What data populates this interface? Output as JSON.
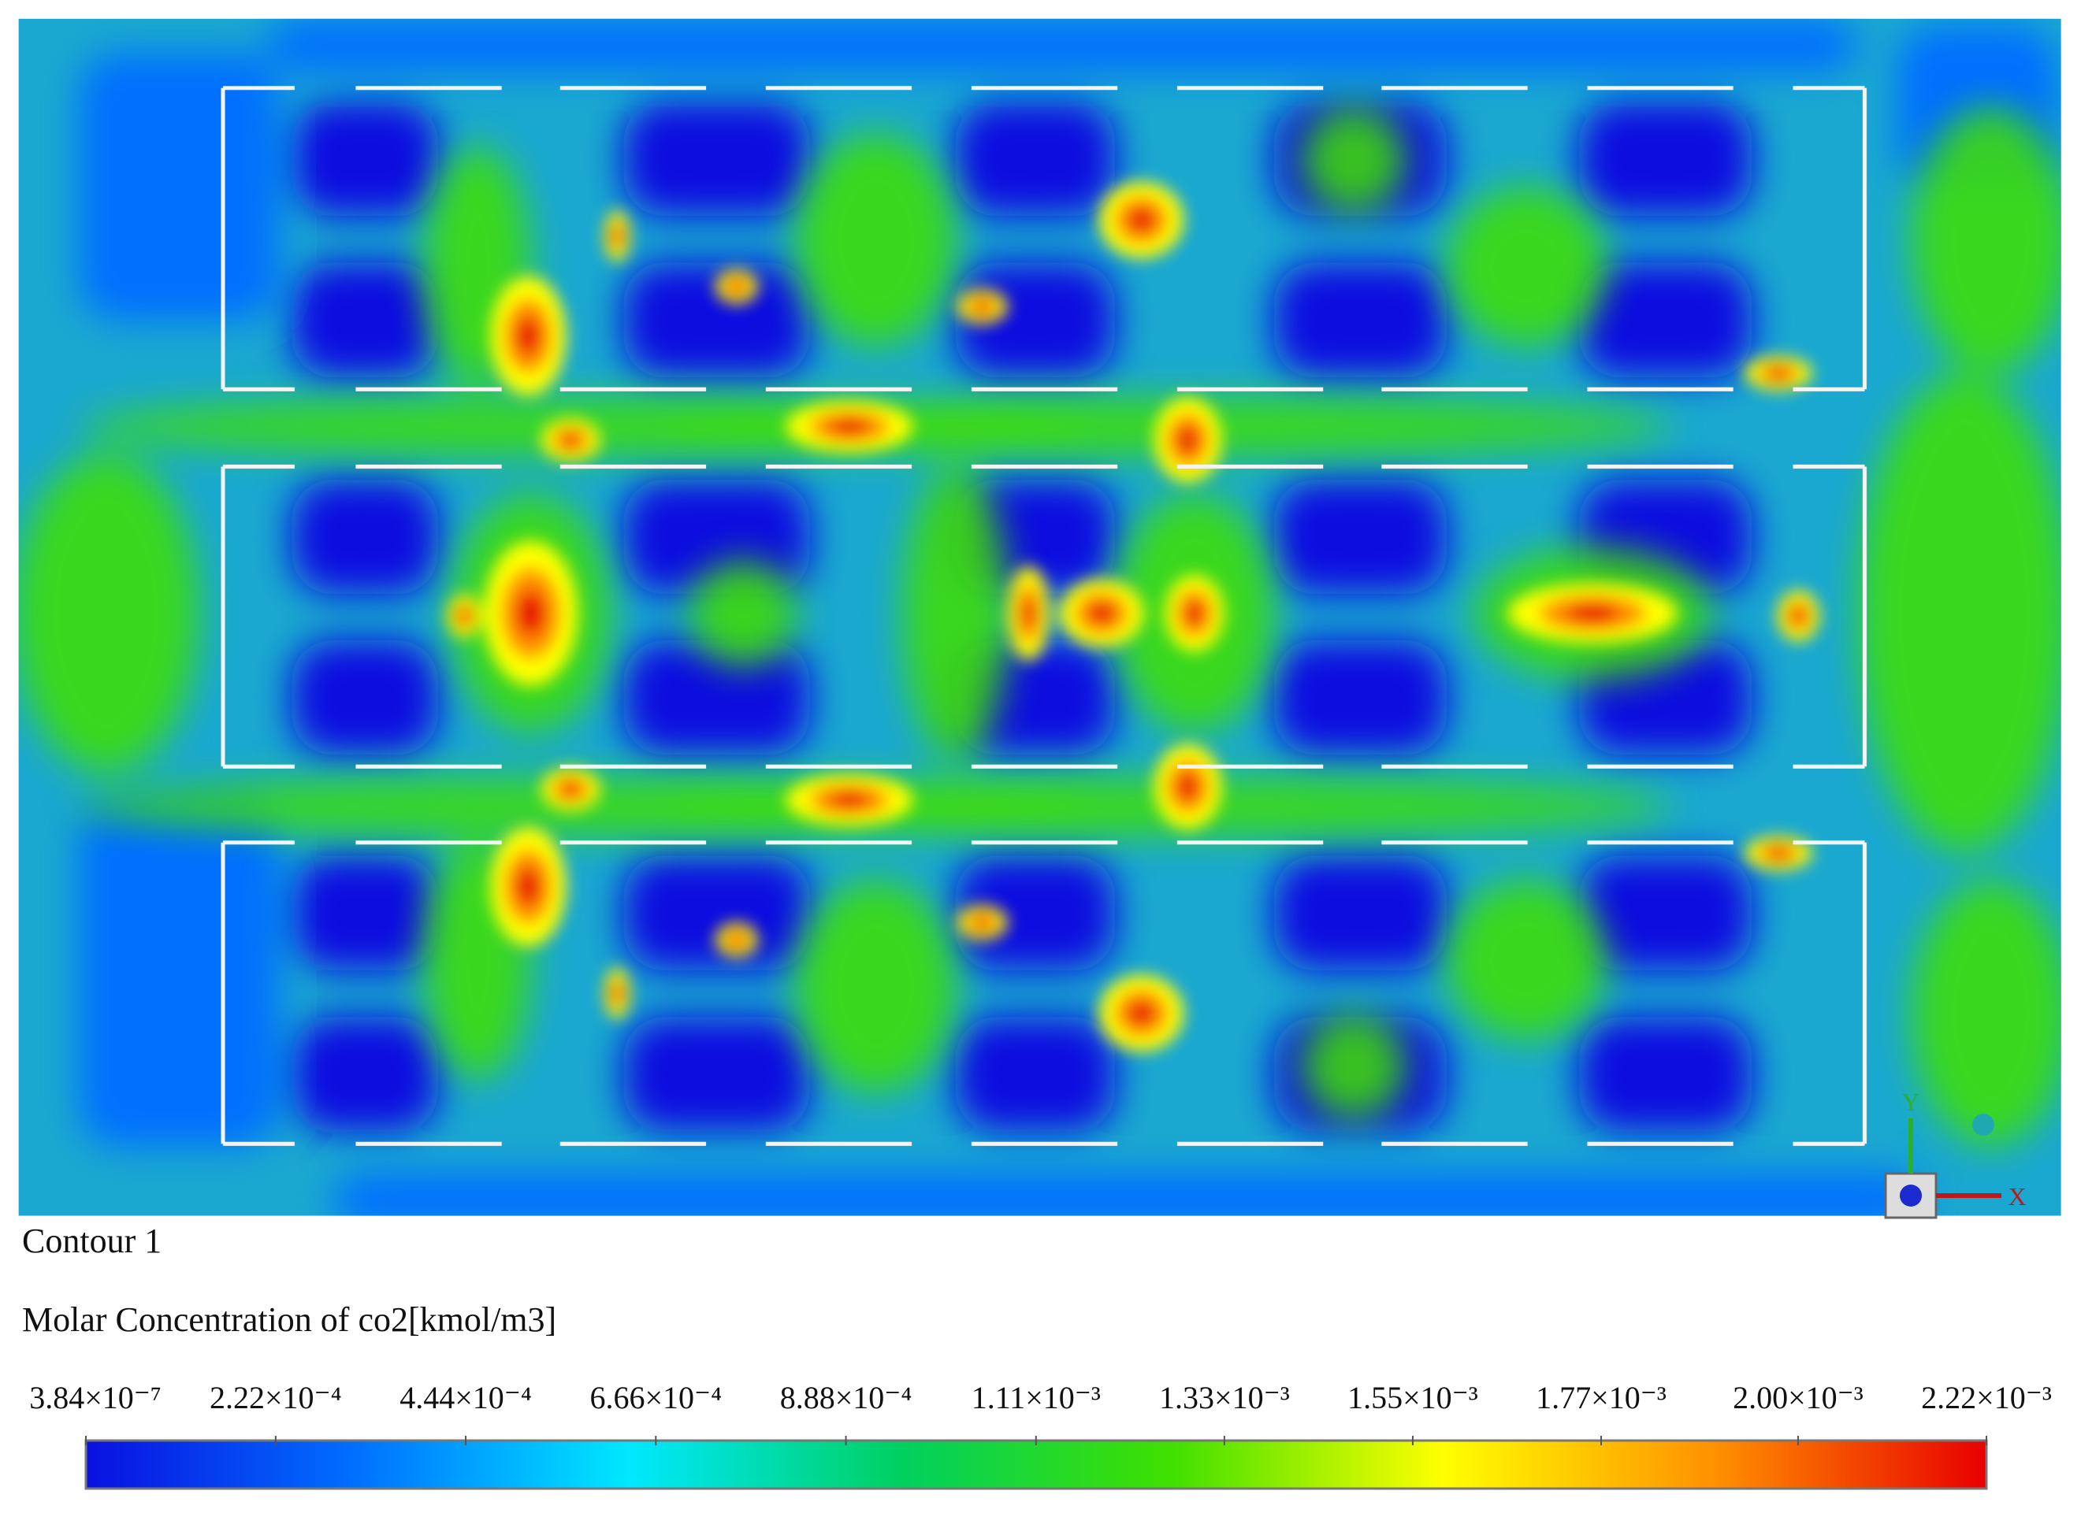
{
  "chart_data": {
    "type": "contour",
    "title": "Contour 1",
    "colorbar_label": "Molar Concentration of co2[kmol/m3]",
    "clim": [
      3.84e-07,
      0.00222
    ],
    "cticks": [
      {
        "value": 3.84e-07,
        "label": "3.84×10⁻⁷"
      },
      {
        "value": 0.000222,
        "label": "2.22×10⁻⁴"
      },
      {
        "value": 0.000444,
        "label": "4.44×10⁻⁴"
      },
      {
        "value": 0.000666,
        "label": "6.66×10⁻⁴"
      },
      {
        "value": 0.000888,
        "label": "8.88×10⁻⁴"
      },
      {
        "value": 0.00111,
        "label": "1.11×10⁻³"
      },
      {
        "value": 0.00133,
        "label": "1.33×10⁻³"
      },
      {
        "value": 0.00155,
        "label": "1.55×10⁻³"
      },
      {
        "value": 0.00177,
        "label": "1.77×10⁻³"
      },
      {
        "value": 0.002,
        "label": "2.00×10⁻³"
      },
      {
        "value": 0.00222,
        "label": "2.22×10⁻³"
      }
    ],
    "colormap": [
      "#0a10e0",
      "#0070ff",
      "#00e8ff",
      "#00d060",
      "#40e000",
      "#ffff00",
      "#ff9000",
      "#e80000"
    ],
    "triad_labels": {
      "x": "X",
      "y": "Y"
    }
  }
}
